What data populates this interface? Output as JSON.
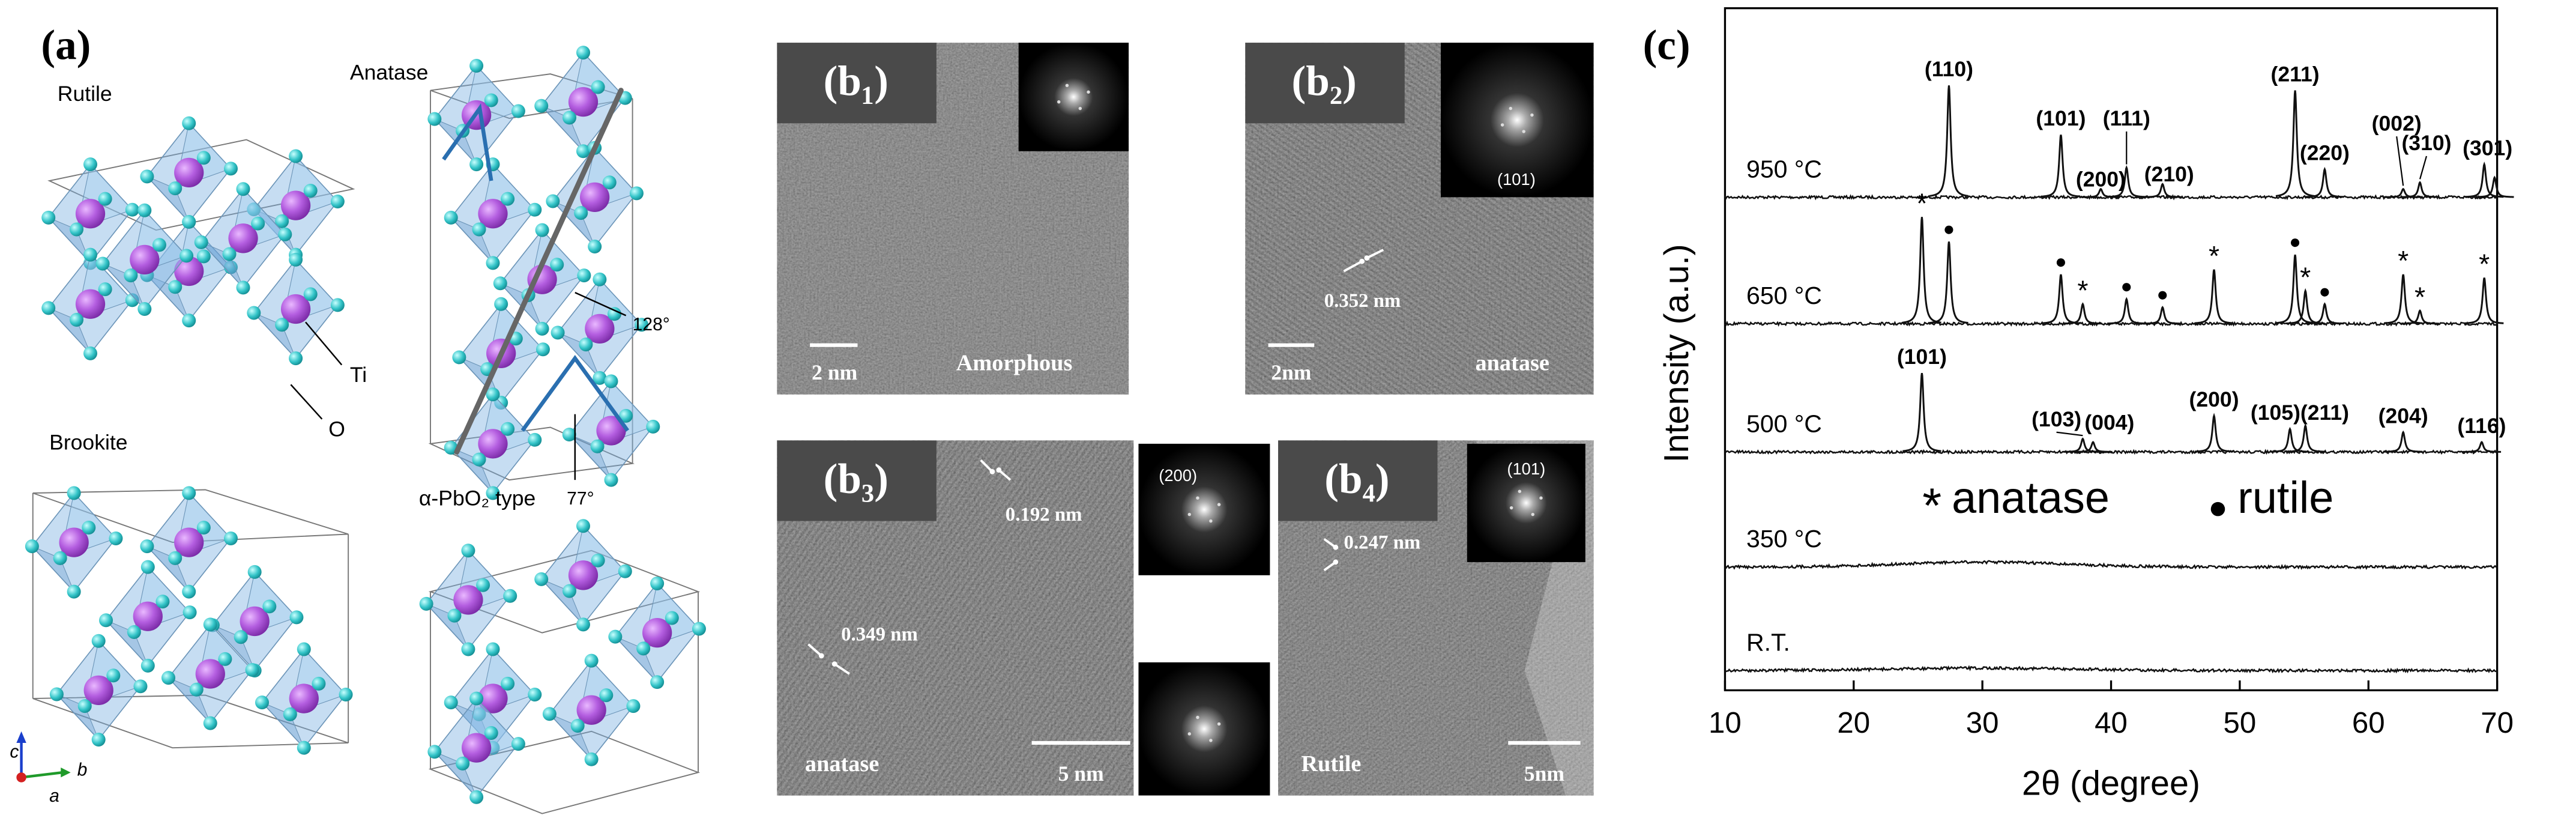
{
  "panel_a": {
    "label": "(a)",
    "rutile": "Rutile",
    "anatase": "Anatase",
    "brookite": "Brookite",
    "pbo2": "α-PbO₂ type",
    "ti": "Ti",
    "o": "O",
    "angle_1": "128°",
    "angle_2": "77°",
    "axis_c": "c",
    "axis_b": "b",
    "axis_a": "a"
  },
  "panels_b": [
    {
      "label": "(b₁)",
      "scale_bar": "2 nm",
      "phase": "Amorphous",
      "spacings": [],
      "fft_labels": []
    },
    {
      "label": "(b₂)",
      "scale_bar": "2nm",
      "phase": "anatase",
      "spacings": [
        "0.352 nm"
      ],
      "fft_labels": [
        "(101)"
      ]
    },
    {
      "label": "(b₃)",
      "scale_bar": "5 nm",
      "phase": "anatase",
      "spacings": [
        "0.192 nm",
        "0.349 nm"
      ],
      "fft_labels": [
        "(200)"
      ]
    },
    {
      "label": "(b₄)",
      "scale_bar": "5nm",
      "phase": "Rutile",
      "spacings": [
        "0.247 nm"
      ],
      "fft_labels": [
        "(101)"
      ]
    }
  ],
  "chart_data": {
    "type": "line",
    "label": "(c)",
    "xlabel": "2θ (degree)",
    "ylabel": "Intensity (a.u.)",
    "xlim": [
      10,
      70
    ],
    "xticks": [
      10,
      20,
      30,
      40,
      50,
      60,
      70
    ],
    "legend": [
      {
        "symbol": "*",
        "name": "anatase"
      },
      {
        "symbol": "●",
        "name": "rutile"
      }
    ],
    "series": [
      {
        "name": "950 °C",
        "peak_positions": [
          27.4,
          36.1,
          39.2,
          41.2,
          44.0,
          54.3,
          56.6,
          62.7,
          64.0,
          69.0,
          69.8
        ],
        "peak_heights": [
          68,
          38,
          5,
          18,
          8,
          65,
          17,
          5,
          9,
          20,
          12
        ],
        "peak_labels": [
          "(110)",
          "(101)",
          "(200)",
          "(111)",
          "(210)",
          "(211)",
          "(220)",
          "(002)",
          "(310)",
          "(301)",
          null
        ]
      },
      {
        "name": "650 °C",
        "peak_positions": [
          25.3,
          27.4,
          36.1,
          37.8,
          41.2,
          44.0,
          48.0,
          54.3,
          55.1,
          56.6,
          62.7,
          64.0,
          69.0
        ],
        "peak_heights": [
          65,
          50,
          30,
          12,
          15,
          10,
          33,
          42,
          20,
          12,
          30,
          8,
          28
        ],
        "peak_markers": [
          "*",
          "●",
          "●",
          "*",
          "●",
          "●",
          "*",
          "●",
          "*",
          "●",
          "*",
          "*",
          "*"
        ]
      },
      {
        "name": "500 °C",
        "peak_positions": [
          25.3,
          37.8,
          38.6,
          48.0,
          53.9,
          55.1,
          62.7,
          68.8
        ],
        "peak_heights": [
          48,
          8,
          6,
          22,
          14,
          16,
          12,
          6
        ],
        "peak_labels": [
          "(101)",
          "(103)",
          "(004)",
          "(200)",
          "(105)(211)",
          null,
          "(204)",
          "(116)"
        ]
      },
      {
        "name": "350 °C",
        "peak_positions": [],
        "peak_heights": []
      },
      {
        "name": "R.T.",
        "peak_positions": [],
        "peak_heights": []
      }
    ]
  }
}
